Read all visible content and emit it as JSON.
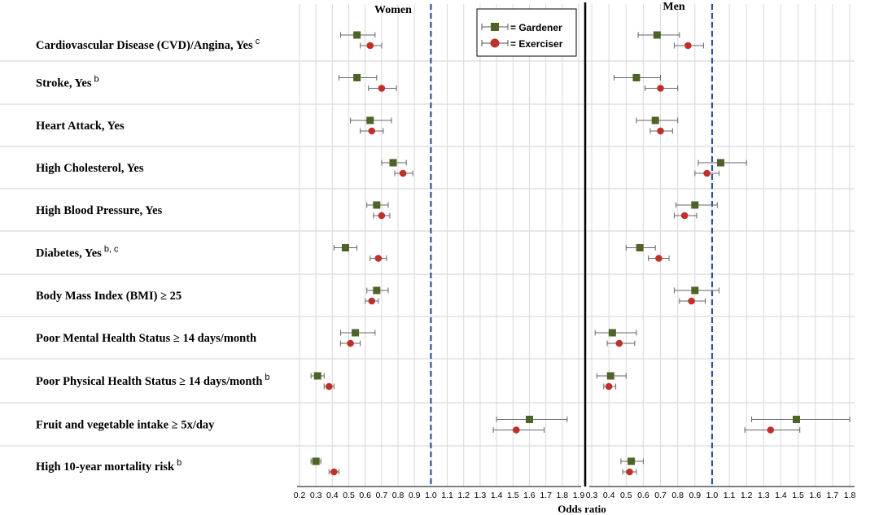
{
  "chart_data": {
    "type": "forest",
    "xlabel": "Odds ratio",
    "legend": [
      {
        "name": "= Gardener",
        "color": "#4f6228",
        "marker": "square"
      },
      {
        "name": "= Exerciser",
        "color": "#c0302a",
        "marker": "circle"
      }
    ],
    "reference_line": 1.0,
    "rows": [
      {
        "label": "Cardiovascular  Disease (CVD)/Angina, Yes",
        "sup": "c"
      },
      {
        "label": "Stroke, Yes",
        "sup": "b"
      },
      {
        "label": "Heart Attack, Yes",
        "sup": ""
      },
      {
        "label": "High Cholesterol, Yes",
        "sup": ""
      },
      {
        "label": "High Blood Pressure, Yes",
        "sup": ""
      },
      {
        "label": "Diabetes, Yes",
        "sup": "b, c"
      },
      {
        "label": "Body Mass Index (BMI) ≥ 25",
        "sup": ""
      },
      {
        "label": "Poor  Mental Health Status ≥ 14 days/month",
        "sup": ""
      },
      {
        "label": "Poor Physical Health Status ≥ 14 days/month",
        "sup": "b"
      },
      {
        "label": "Fruit  and vegetable intake ≥ 5x/day",
        "sup": ""
      },
      {
        "label": "High 10-year mortality risk",
        "sup": "b"
      }
    ],
    "panels": [
      {
        "title": "Women",
        "xlim": [
          0.2,
          1.9
        ],
        "ticks": [
          "0.2",
          "0.3",
          "0.4",
          "0.5",
          "0.6",
          "0.7",
          "0.8",
          "0.9",
          "1.0",
          "1.1",
          "1.2",
          "1.3",
          "1.4",
          "1.5",
          "1.6",
          "1.7",
          "1.8",
          "1.9"
        ],
        "gardener": [
          {
            "or": 0.55,
            "lo": 0.45,
            "hi": 0.66
          },
          {
            "or": 0.55,
            "lo": 0.44,
            "hi": 0.67
          },
          {
            "or": 0.63,
            "lo": 0.51,
            "hi": 0.76
          },
          {
            "or": 0.77,
            "lo": 0.7,
            "hi": 0.85
          },
          {
            "or": 0.67,
            "lo": 0.61,
            "hi": 0.74
          },
          {
            "or": 0.48,
            "lo": 0.41,
            "hi": 0.55
          },
          {
            "or": 0.67,
            "lo": 0.61,
            "hi": 0.74
          },
          {
            "or": 0.54,
            "lo": 0.45,
            "hi": 0.66
          },
          {
            "or": 0.31,
            "lo": 0.27,
            "hi": 0.35
          },
          {
            "or": 1.6,
            "lo": 1.4,
            "hi": 1.83
          },
          {
            "or": 0.3,
            "lo": 0.27,
            "hi": 0.33
          }
        ],
        "exerciser": [
          {
            "or": 0.63,
            "lo": 0.57,
            "hi": 0.7
          },
          {
            "or": 0.7,
            "lo": 0.62,
            "hi": 0.79
          },
          {
            "or": 0.64,
            "lo": 0.57,
            "hi": 0.71
          },
          {
            "or": 0.83,
            "lo": 0.78,
            "hi": 0.89
          },
          {
            "or": 0.7,
            "lo": 0.65,
            "hi": 0.75
          },
          {
            "or": 0.68,
            "lo": 0.63,
            "hi": 0.73
          },
          {
            "or": 0.64,
            "lo": 0.6,
            "hi": 0.68
          },
          {
            "or": 0.51,
            "lo": 0.45,
            "hi": 0.57
          },
          {
            "or": 0.38,
            "lo": 0.35,
            "hi": 0.41
          },
          {
            "or": 1.52,
            "lo": 1.38,
            "hi": 1.69
          },
          {
            "or": 0.41,
            "lo": 0.38,
            "hi": 0.44
          }
        ]
      },
      {
        "title": "Men",
        "xlim": [
          0.3,
          1.8
        ],
        "ticks": [
          "0.3",
          "0.4",
          "0.5",
          "0.6",
          "0.7",
          "0.8",
          "0.9",
          "1.0",
          "1.1",
          "1.2",
          "1.3",
          "1.4",
          "1.5",
          "1.6",
          "1.7",
          "1.8"
        ],
        "gardener": [
          {
            "or": 0.68,
            "lo": 0.57,
            "hi": 0.81
          },
          {
            "or": 0.56,
            "lo": 0.43,
            "hi": 0.7
          },
          {
            "or": 0.67,
            "lo": 0.56,
            "hi": 0.8
          },
          {
            "or": 1.05,
            "lo": 0.92,
            "hi": 1.2
          },
          {
            "or": 0.9,
            "lo": 0.79,
            "hi": 1.03
          },
          {
            "or": 0.58,
            "lo": 0.5,
            "hi": 0.67
          },
          {
            "or": 0.9,
            "lo": 0.78,
            "hi": 1.04
          },
          {
            "or": 0.42,
            "lo": 0.32,
            "hi": 0.56
          },
          {
            "or": 0.41,
            "lo": 0.33,
            "hi": 0.5
          },
          {
            "or": 1.49,
            "lo": 1.23,
            "hi": 1.8
          },
          {
            "or": 0.53,
            "lo": 0.47,
            "hi": 0.6
          }
        ],
        "exerciser": [
          {
            "or": 0.86,
            "lo": 0.78,
            "hi": 0.95
          },
          {
            "or": 0.7,
            "lo": 0.61,
            "hi": 0.8
          },
          {
            "or": 0.7,
            "lo": 0.64,
            "hi": 0.77
          },
          {
            "or": 0.97,
            "lo": 0.9,
            "hi": 1.04
          },
          {
            "or": 0.84,
            "lo": 0.78,
            "hi": 0.91
          },
          {
            "or": 0.69,
            "lo": 0.63,
            "hi": 0.75
          },
          {
            "or": 0.88,
            "lo": 0.81,
            "hi": 0.96
          },
          {
            "or": 0.46,
            "lo": 0.39,
            "hi": 0.55
          },
          {
            "or": 0.4,
            "lo": 0.37,
            "hi": 0.44
          },
          {
            "or": 1.34,
            "lo": 1.19,
            "hi": 1.51
          },
          {
            "or": 0.52,
            "lo": 0.48,
            "hi": 0.56
          }
        ]
      }
    ]
  }
}
